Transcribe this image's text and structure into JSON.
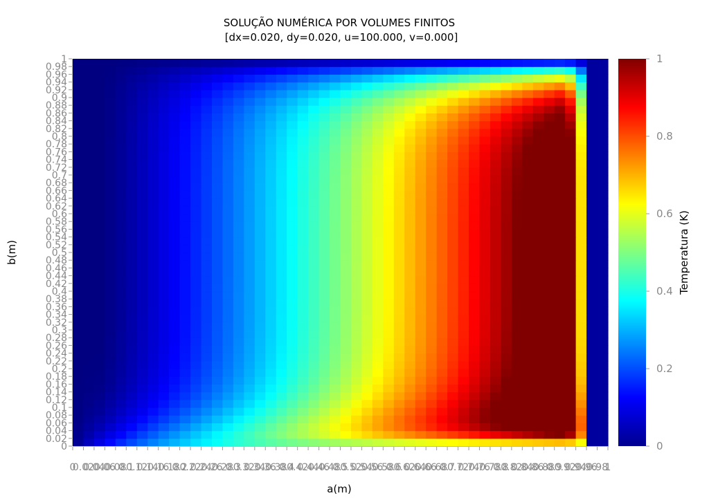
{
  "chart_data": {
    "type": "heatmap",
    "title": "SOLUÇÃO NUMÉRICA POR VOLUMES FINITOS",
    "subtitle": "[dx=0.020, dy=0.020, u=100.000, v=0.000]",
    "xlabel": "a(m)",
    "ylabel": "b(m)",
    "xlim": [
      0,
      1
    ],
    "ylim": [
      0,
      1
    ],
    "grid_nx": 50,
    "grid_ny": 50,
    "x_tick_labels": [
      "0",
      "0.02",
      "0.04",
      "0.06",
      "0.08",
      "0.1",
      "0.12",
      "0.14",
      "0.16",
      "0.18",
      "0.2",
      "0.22",
      "0.24",
      "0.26",
      "0.28",
      "0.3",
      "0.32",
      "0.34",
      "0.36",
      "0.38",
      "0.4",
      "0.42",
      "0.44",
      "0.46",
      "0.48",
      "0.5",
      "0.52",
      "0.54",
      "0.56",
      "0.58",
      "0.6",
      "0.62",
      "0.64",
      "0.66",
      "0.68",
      "0.7",
      "0.72",
      "0.74",
      "0.76",
      "0.78",
      "0.8",
      "0.82",
      "0.84",
      "0.86",
      "0.88",
      "0.9",
      "0.92",
      "0.94",
      "0.96",
      "0.98",
      "1"
    ],
    "y_tick_labels": [
      "0",
      "0.02",
      "0.04",
      "0.06",
      "0.08",
      "0.1",
      "0.12",
      "0.14",
      "0.16",
      "0.18",
      "0.2",
      "0.22",
      "0.24",
      "0.26",
      "0.28",
      "0.3",
      "0.32",
      "0.34",
      "0.36",
      "0.38",
      "0.4",
      "0.42",
      "0.44",
      "0.46",
      "0.48",
      "0.5",
      "0.52",
      "0.54",
      "0.56",
      "0.58",
      "0.6",
      "0.62",
      "0.64",
      "0.66",
      "0.68",
      "0.7",
      "0.72",
      "0.74",
      "0.76",
      "0.78",
      "0.8",
      "0.82",
      "0.84",
      "0.86",
      "0.88",
      "0.9",
      "0.92",
      "0.94",
      "0.96",
      "0.98",
      "1"
    ],
    "colorbar": {
      "label": "Temperatura (K)",
      "range": [
        0,
        1
      ],
      "ticks": [
        "0",
        "0.2",
        "0.4",
        "0.6",
        "0.8",
        "1"
      ],
      "colormap": "jet"
    }
  }
}
